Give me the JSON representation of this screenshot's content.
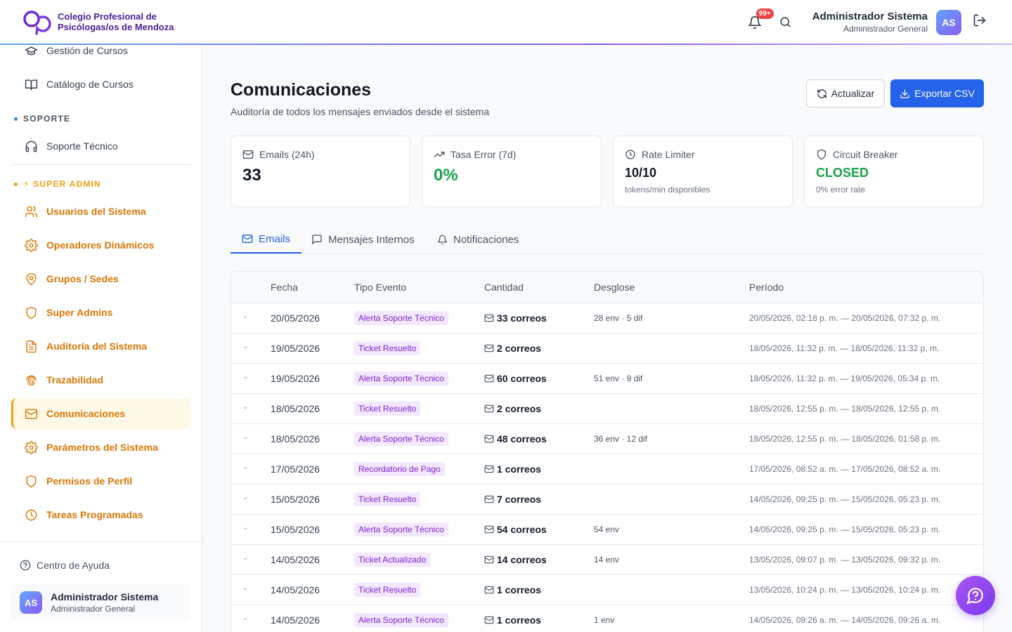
{
  "header": {
    "org_line1": "Colegio Profesional de",
    "org_line2": "Psicólogas/os de Mendoza",
    "notif_badge": "99+",
    "user_name": "Administrador Sistema",
    "user_role": "Administrador General",
    "avatar_initials": "AS"
  },
  "sidebar": {
    "items_top": [
      {
        "label": "Gestión de Cursos",
        "icon": "graduation-cap-icon"
      },
      {
        "label": "Catálogo de Cursos",
        "icon": "book-open-icon"
      }
    ],
    "section_support": "SOPORTE",
    "support_items": [
      {
        "label": "Soporte Técnico",
        "icon": "headphones-icon"
      }
    ],
    "section_admin": "⚡ SUPER ADMIN",
    "admin_items": [
      {
        "label": "Usuarios del Sistema",
        "icon": "users-icon"
      },
      {
        "label": "Operadores Dinámicos",
        "icon": "gear-icon"
      },
      {
        "label": "Grupos / Sedes",
        "icon": "map-pin-icon"
      },
      {
        "label": "Super Admins",
        "icon": "shield-icon"
      },
      {
        "label": "Auditoría del Sistema",
        "icon": "file-text-icon"
      },
      {
        "label": "Trazabilidad",
        "icon": "fingerprint-icon"
      },
      {
        "label": "Comunicaciones",
        "icon": "mail-icon"
      },
      {
        "label": "Parámetros del Sistema",
        "icon": "gear-icon"
      },
      {
        "label": "Permisos de Perfil",
        "icon": "shield-icon"
      },
      {
        "label": "Tareas Programadas",
        "icon": "clock-icon"
      }
    ],
    "help": "Centro de Ayuda",
    "user_name": "Administrador Sistema",
    "user_role": "Administrador General",
    "avatar_initials": "AS"
  },
  "page": {
    "title": "Comunicaciones",
    "subtitle": "Auditoría de todos los mensajes enviados desde el sistema",
    "refresh_label": "Actualizar",
    "export_label": "Exportar CSV"
  },
  "cards": [
    {
      "label": "Emails (24h)",
      "value": "33",
      "note": ""
    },
    {
      "label": "Tasa Error (7d)",
      "value": "0%",
      "note": ""
    },
    {
      "label": "Rate Limiter",
      "value": "10/10",
      "note": "tokens/min disponibles"
    },
    {
      "label": "Circuit Breaker",
      "value": "CLOSED",
      "note": "0% error rate"
    }
  ],
  "tabs": [
    {
      "label": "Emails",
      "active": true
    },
    {
      "label": "Mensajes Internos",
      "active": false
    },
    {
      "label": "Notificaciones",
      "active": false
    }
  ],
  "table": {
    "headers": [
      "Fecha",
      "Tipo Evento",
      "Cantidad",
      "Desglose",
      "Período"
    ],
    "rows": [
      {
        "fecha": "20/05/2026",
        "tipo": "Alerta Soporte Técnico",
        "cantidad": "33 correos",
        "desglose": "28 env · 5 dif",
        "periodo": "20/05/2026, 02:18 p. m. — 20/05/2026, 07:32 p. m."
      },
      {
        "fecha": "19/05/2026",
        "tipo": "Ticket Resuelto",
        "cantidad": "2 correos",
        "desglose": "",
        "periodo": "18/05/2026, 11:32 p. m. — 18/05/2026, 11:32 p. m."
      },
      {
        "fecha": "19/05/2026",
        "tipo": "Alerta Soporte Técnico",
        "cantidad": "60 correos",
        "desglose": "51 env · 9 dif",
        "periodo": "18/05/2026, 11:32 p. m. — 19/05/2026, 05:34 p. m."
      },
      {
        "fecha": "18/05/2026",
        "tipo": "Ticket Resuelto",
        "cantidad": "2 correos",
        "desglose": "",
        "periodo": "18/05/2026, 12:55 p. m. — 18/05/2026, 12:55 p. m."
      },
      {
        "fecha": "18/05/2026",
        "tipo": "Alerta Soporte Técnico",
        "cantidad": "48 correos",
        "desglose": "36 env · 12 dif",
        "periodo": "18/05/2026, 12:55 p. m. — 18/05/2026, 01:58 p. m."
      },
      {
        "fecha": "17/05/2026",
        "tipo": "Recordatorio de Pago",
        "cantidad": "1 correos",
        "desglose": "",
        "periodo": "17/05/2026, 08:52 a. m. — 17/05/2026, 08:52 a. m."
      },
      {
        "fecha": "15/05/2026",
        "tipo": "Ticket Resuelto",
        "cantidad": "7 correos",
        "desglose": "",
        "periodo": "14/05/2026, 09:25 p. m. — 15/05/2026, 05:23 p. m."
      },
      {
        "fecha": "15/05/2026",
        "tipo": "Alerta Soporte Técnico",
        "cantidad": "54 correos",
        "desglose": "54 env",
        "periodo": "14/05/2026, 09:25 p. m. — 15/05/2026, 05:23 p. m."
      },
      {
        "fecha": "14/05/2026",
        "tipo": "Ticket Actualizado",
        "cantidad": "14 correos",
        "desglose": "14 env",
        "periodo": "13/05/2026, 09:07 p. m. — 13/05/2026, 09:32 p. m."
      },
      {
        "fecha": "14/05/2026",
        "tipo": "Ticket Resuelto",
        "cantidad": "1 correos",
        "desglose": "",
        "periodo": "13/05/2026, 10:24 p. m. — 13/05/2026, 10:24 p. m."
      },
      {
        "fecha": "14/05/2026",
        "tipo": "Alerta Soporte Técnico",
        "cantidad": "1 correos",
        "desglose": "1 env",
        "periodo": "14/05/2026, 09:26 a. m. — 14/05/2026, 09:26 a. m."
      }
    ]
  },
  "colors": {
    "accent": "#2563eb",
    "super_admin": "#d97706",
    "badge_bg": "#f3e8ff",
    "badge_text": "#7e22ce",
    "success": "#16a34a"
  }
}
